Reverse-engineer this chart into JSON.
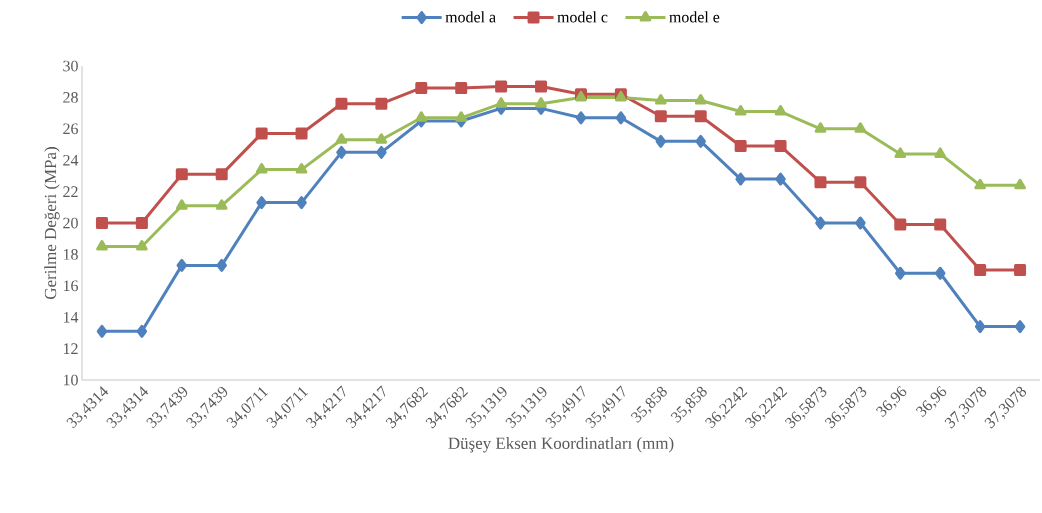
{
  "chart_data": {
    "type": "line",
    "xlabel": "Düşey Eksen Koordinatları (mm)",
    "ylabel": "Gerilme Değeri (MPa)",
    "categories": [
      "33,4314",
      "33,4314",
      "33,7439",
      "33,7439",
      "34,0711",
      "34,0711",
      "34,4217",
      "34,4217",
      "34,7682",
      "34,7682",
      "35,1319",
      "35,1319",
      "35,4917",
      "35,4917",
      "35,858",
      "35,858",
      "36,2242",
      "36,2242",
      "36,5873",
      "36,5873",
      "36,96",
      "36,96",
      "37,3078",
      "37,3078"
    ],
    "series": [
      {
        "name": "model a",
        "color": "#4f81bd",
        "marker": "diamond",
        "values": [
          13.1,
          13.1,
          17.3,
          17.3,
          21.3,
          21.3,
          24.5,
          24.5,
          26.5,
          26.5,
          27.3,
          27.3,
          26.7,
          26.7,
          25.2,
          25.2,
          22.8,
          22.8,
          20.0,
          20.0,
          16.8,
          16.8,
          13.4,
          13.4
        ]
      },
      {
        "name": "model c",
        "color": "#c0504d",
        "marker": "square",
        "values": [
          20.0,
          20.0,
          23.1,
          23.1,
          25.7,
          25.7,
          27.6,
          27.6,
          28.6,
          28.6,
          28.7,
          28.7,
          28.2,
          28.2,
          26.8,
          26.8,
          24.9,
          24.9,
          22.6,
          22.6,
          19.9,
          19.9,
          17.0,
          17.0
        ]
      },
      {
        "name": "model e",
        "color": "#9bbb59",
        "marker": "triangle",
        "values": [
          18.5,
          18.5,
          21.1,
          21.1,
          23.4,
          23.4,
          25.3,
          25.3,
          26.7,
          26.7,
          27.6,
          27.6,
          28.0,
          28.0,
          27.8,
          27.8,
          27.1,
          27.1,
          26.0,
          26.0,
          24.4,
          24.4,
          22.4,
          22.4
        ]
      }
    ],
    "ylim": [
      10,
      30
    ],
    "yticks": [
      10,
      12,
      14,
      16,
      18,
      20,
      22,
      24,
      26,
      28,
      30
    ],
    "legend": "top",
    "grid": false,
    "line_style": "solid"
  }
}
